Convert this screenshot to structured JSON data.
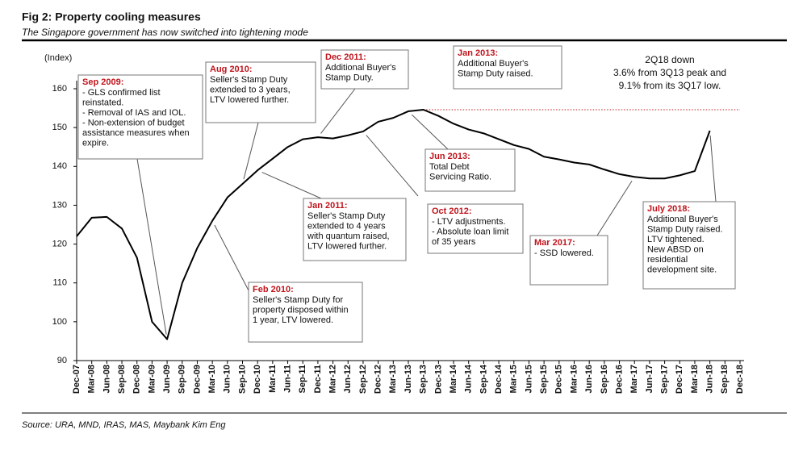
{
  "chart_data": {
    "type": "line",
    "title": "Fig 2: Property cooling measures",
    "subtitle": "The Singapore government has now switched into tightening mode",
    "y_label": "(Index)",
    "source": "Source: URA, MND, IRAS, MAS, Maybank Kim Eng",
    "categories": [
      "Dec-07",
      "Mar-08",
      "Jun-08",
      "Sep-08",
      "Dec-08",
      "Mar-09",
      "Jun-09",
      "Sep-09",
      "Dec-09",
      "Mar-10",
      "Jun-10",
      "Sep-10",
      "Dec-10",
      "Mar-11",
      "Jun-11",
      "Sep-11",
      "Dec-11",
      "Mar-12",
      "Jun-12",
      "Sep-12",
      "Dec-12",
      "Mar-13",
      "Jun-13",
      "Sep-13",
      "Dec-13",
      "Mar-14",
      "Jun-14",
      "Sep-14",
      "Dec-14",
      "Mar-15",
      "Jun-15",
      "Sep-15",
      "Dec-15",
      "Mar-16",
      "Jun-16",
      "Sep-16",
      "Dec-16",
      "Mar-17",
      "Jun-17",
      "Sep-17",
      "Dec-17",
      "Mar-18",
      "Jun-18",
      "Sep-18",
      "Dec-18"
    ],
    "series": [
      {
        "name": "Index",
        "color": "#000000",
        "values": [
          122,
          126.8,
          127,
          124,
          116.5,
          100,
          95.5,
          110,
          119,
          126,
          132,
          135.5,
          139,
          142,
          145,
          147,
          147.5,
          147.2,
          148,
          149,
          151.5,
          152.5,
          154.2,
          154.6,
          153,
          151,
          149.5,
          148.5,
          147,
          145.5,
          144.5,
          142.5,
          141.8,
          141,
          140.5,
          139.2,
          138,
          137.3,
          136.9,
          136.9,
          137.7,
          138.8,
          149.2,
          null,
          null
        ]
      }
    ],
    "reference_line": {
      "value": 154.6,
      "color": "#c0141c",
      "style": "dotted"
    },
    "ylim": [
      90,
      160
    ],
    "yticks": [
      90,
      100,
      110,
      120,
      130,
      140,
      150,
      160
    ],
    "annotations": [
      {
        "title": "Sep 2009:",
        "lines": [
          "- GLS confirmed list",
          "reinstated.",
          "- Removal of IAS and IOL.",
          "- Non-extension of budget",
          "assistance measures when",
          "expire."
        ]
      },
      {
        "title": "Aug 2010:",
        "lines": [
          "Seller's Stamp Duty",
          "extended to 3 years,",
          "LTV lowered further."
        ]
      },
      {
        "title": "Dec 2011:",
        "lines": [
          "Additional Buyer's",
          "Stamp Duty."
        ]
      },
      {
        "title": "Jan 2013:",
        "lines": [
          "Additional Buyer's",
          "Stamp Duty raised."
        ]
      },
      {
        "title": "Jun 2013:",
        "lines": [
          "Total Debt",
          "Servicing Ratio."
        ]
      },
      {
        "title": "Jan 2011:",
        "lines": [
          "Seller's Stamp Duty",
          "extended to 4 years",
          "with quantum raised,",
          "LTV lowered further."
        ]
      },
      {
        "title": "Oct 2012:",
        "lines": [
          "- LTV adjustments.",
          "- Absolute loan limit",
          "of 35 years"
        ]
      },
      {
        "title": "Feb 2010:",
        "lines": [
          "Seller's Stamp Duty for",
          "property disposed within",
          "1 year, LTV lowered."
        ]
      },
      {
        "title": "Mar 2017:",
        "lines": [
          "- SSD lowered."
        ]
      },
      {
        "title": "July 2018:",
        "lines": [
          "Additional Buyer's",
          "Stamp Duty raised.",
          "LTV tightened.",
          "New ABSD on",
          "residential",
          "development site."
        ]
      }
    ],
    "note": [
      "2Q18 down",
      "3.6% from 3Q13 peak and",
      "9.1% from its 3Q17 low."
    ]
  }
}
